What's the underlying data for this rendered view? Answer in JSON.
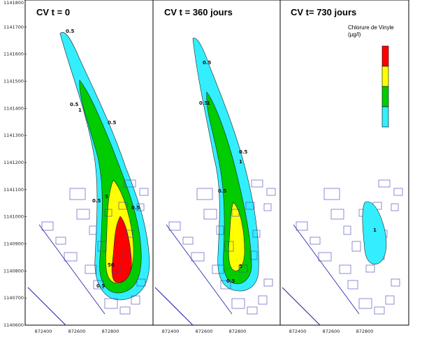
{
  "panels": [
    {
      "title": "CV t = 0",
      "level": 0
    },
    {
      "title": "CV t = 360 jours",
      "level": 1
    },
    {
      "title": "CV t= 730 jours",
      "level": 2
    }
  ],
  "y_ticks": [
    "1141800",
    "1141700",
    "1141600",
    "1141500",
    "1141400",
    "1141300",
    "1141200",
    "1141100",
    "1141000",
    "1140900",
    "1140800",
    "1140700",
    "1140600"
  ],
  "x_ticks": [
    [
      "872400",
      "872600",
      "872800"
    ],
    [
      "872400",
      "872600",
      "872800"
    ],
    [
      "872400",
      "872600",
      "872800"
    ]
  ],
  "legend": {
    "title_line1": "Chlorure de Vinyle",
    "title_line2": "(µg/l)",
    "colors": [
      "#ff0000",
      "#ffff00",
      "#00cc00",
      "#33eeff"
    ]
  },
  "contour_labels": {
    "half": "0.5",
    "one": "1",
    "five": "5",
    "fifty": "50"
  },
  "colors": {
    "outer": "#33eeff",
    "mid": "#00cc00",
    "inner": "#ffff00",
    "core": "#ff0000",
    "buildings": "#4444bb",
    "roads": "#1a1aaa"
  }
}
